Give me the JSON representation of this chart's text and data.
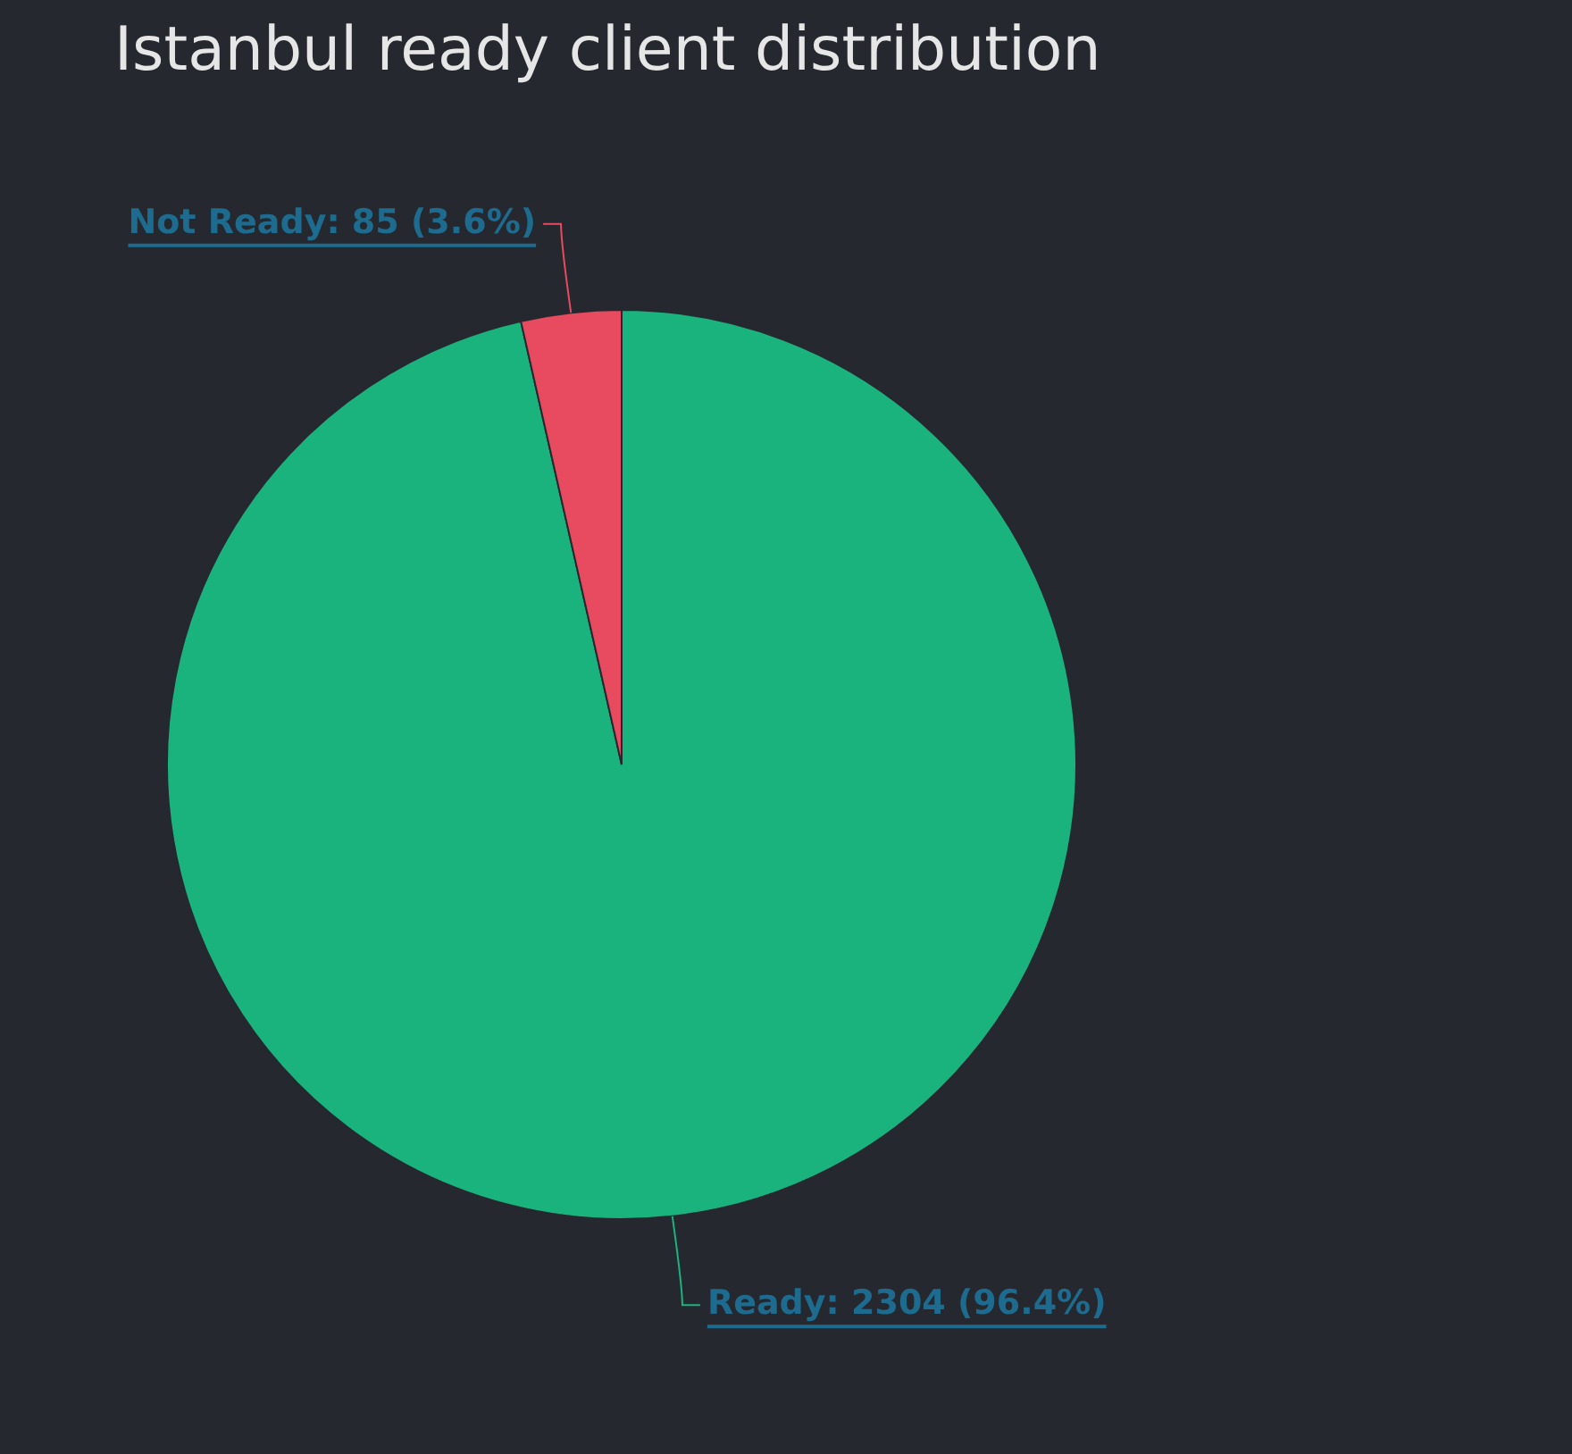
{
  "chart_data": {
    "type": "pie",
    "title": "Istanbul ready client distribution",
    "categories": [
      "Ready",
      "Not Ready"
    ],
    "values": [
      2304,
      85
    ],
    "colors": [
      "#1bb37d",
      "#e84a5f"
    ],
    "value_labels": [
      "2304 (96.4%)",
      "85 (3.6%)"
    ],
    "legend": false
  }
}
